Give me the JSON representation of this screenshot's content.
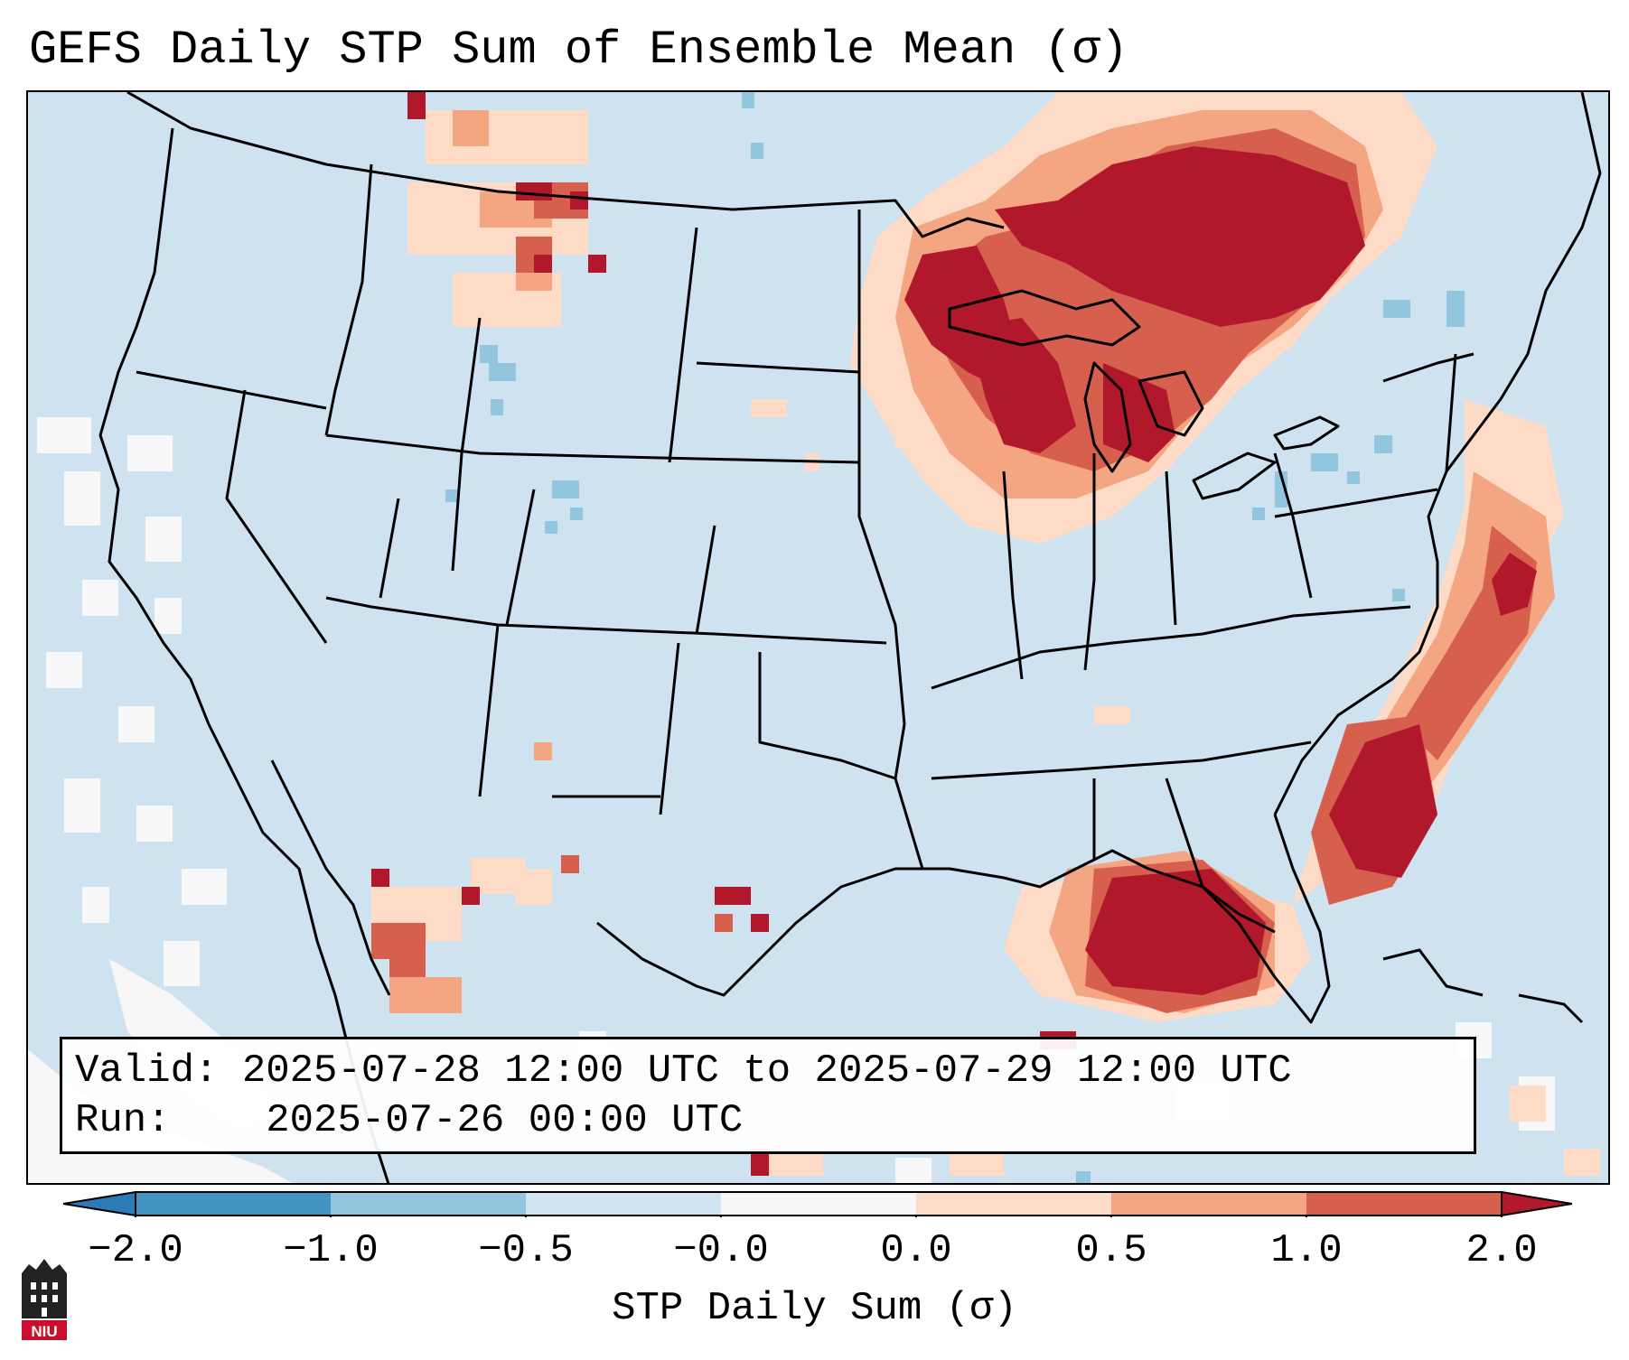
{
  "title": "GEFS Daily STP Sum of Ensemble Mean (σ)",
  "info": {
    "valid_label": "Valid:",
    "valid_value": "2025-07-28 12:00 UTC to 2025-07-29 12:00 UTC",
    "run_label": "Run:",
    "run_value": "2025-07-26 00:00 UTC"
  },
  "colorbar": {
    "label": "STP Daily Sum (σ)",
    "ticks": [
      "−2.0",
      "−1.0",
      "−0.5",
      "−0.0",
      "0.0",
      "0.5",
      "1.0",
      "2.0"
    ],
    "colors": {
      "under": "#2c7bb6",
      "bins": [
        "#4393c3",
        "#92c5de",
        "#d1e5f0",
        "#f7f7f7",
        "#fddbc7",
        "#f4a582",
        "#d6604d"
      ],
      "over": "#b2182b"
    }
  },
  "legend_colors": {
    "map_background": "#cfe2ef",
    "boundaries": "#000000"
  },
  "logo": {
    "text": "NIU",
    "color": "#c8102e"
  }
}
